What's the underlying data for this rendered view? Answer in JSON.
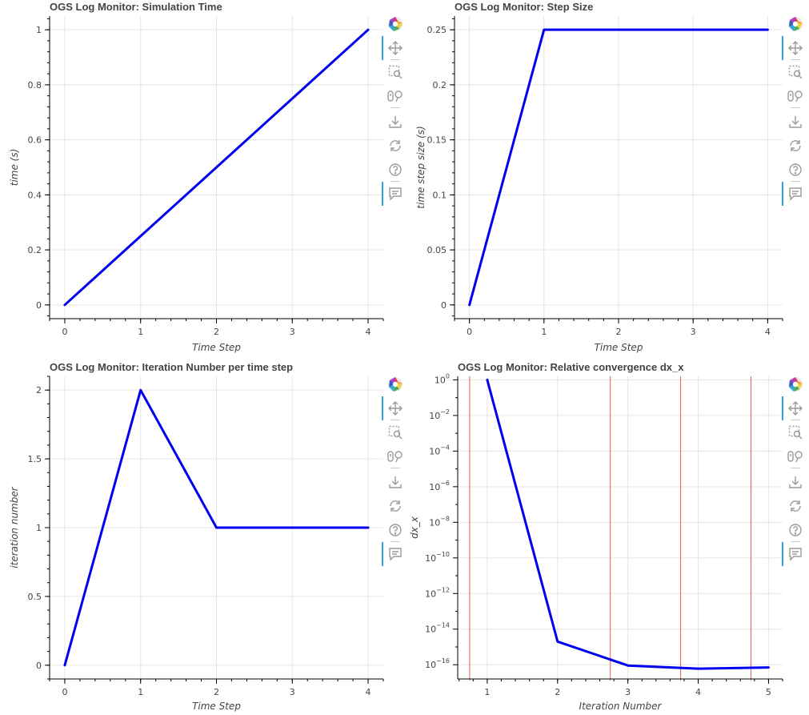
{
  "colors": {
    "series": "#0000ee",
    "vline": "#e06050",
    "grid": "#e5e5e5"
  },
  "charts": [
    {
      "title": "OGS Log Monitor: Simulation Time",
      "xlabel": "Time Step",
      "ylabel": "time (s)"
    },
    {
      "title": "OGS Log Monitor: Step Size",
      "xlabel": "Time Step",
      "ylabel": "time step size (s)"
    },
    {
      "title": "OGS Log Monitor: Iteration Number per time step",
      "xlabel": "Time Step",
      "ylabel": "iteration number"
    },
    {
      "title": "OGS Log Monitor: Relative convergence dx_x",
      "xlabel": "Iteration Number",
      "ylabel": "dx_x"
    }
  ],
  "toolbar_icons": [
    "bokeh-logo-icon",
    "pan-icon",
    "box-zoom-icon",
    "wheel-zoom-icon",
    "save-icon",
    "reset-icon",
    "help-icon",
    "hover-icon"
  ],
  "chart_data": [
    {
      "type": "line",
      "title": "OGS Log Monitor: Simulation Time",
      "xlabel": "Time Step",
      "ylabel": "time (s)",
      "x": [
        0,
        1,
        2,
        3,
        4
      ],
      "series": [
        {
          "values": [
            0,
            0.25,
            0.5,
            0.75,
            1.0
          ]
        }
      ],
      "xlim": [
        -0.2,
        4.2
      ],
      "ylim": [
        -0.05,
        1.05
      ],
      "xticks": [
        0,
        1,
        2,
        3,
        4
      ],
      "xtick_labels": [
        "0",
        "1",
        "2",
        "3",
        "4"
      ],
      "yticks": [
        0,
        0.2,
        0.4,
        0.6,
        0.8,
        1
      ],
      "ytick_labels": [
        "0",
        "0.2",
        "0.4",
        "0.6",
        "0.8",
        "1"
      ],
      "grid": true,
      "legend": "none"
    },
    {
      "type": "line",
      "title": "OGS Log Monitor: Step Size",
      "xlabel": "Time Step",
      "ylabel": "time step size (s)",
      "x": [
        0,
        1,
        2,
        3,
        4
      ],
      "series": [
        {
          "values": [
            0,
            0.25,
            0.25,
            0.25,
            0.25
          ]
        }
      ],
      "xlim": [
        -0.2,
        4.2
      ],
      "ylim": [
        -0.0125,
        0.2625
      ],
      "xticks": [
        0,
        1,
        2,
        3,
        4
      ],
      "xtick_labels": [
        "0",
        "1",
        "2",
        "3",
        "4"
      ],
      "yticks": [
        0,
        0.05,
        0.1,
        0.15,
        0.2,
        0.25
      ],
      "ytick_labels": [
        "0",
        "0.05",
        "0.1",
        "0.15",
        "0.2",
        "0.25"
      ],
      "grid": true,
      "legend": "none"
    },
    {
      "type": "line",
      "title": "OGS Log Monitor: Iteration Number per time step",
      "xlabel": "Time Step",
      "ylabel": "iteration number",
      "x": [
        0,
        1,
        2,
        3,
        4
      ],
      "series": [
        {
          "values": [
            0,
            2,
            1,
            1,
            1
          ]
        }
      ],
      "xlim": [
        -0.2,
        4.2
      ],
      "ylim": [
        -0.1,
        2.1
      ],
      "xticks": [
        0,
        1,
        2,
        3,
        4
      ],
      "xtick_labels": [
        "0",
        "1",
        "2",
        "3",
        "4"
      ],
      "yticks": [
        0,
        0.5,
        1,
        1.5,
        2
      ],
      "ytick_labels": [
        "0",
        "0.5",
        "1",
        "1.5",
        "2"
      ],
      "grid": true,
      "legend": "none"
    },
    {
      "type": "line",
      "title": "OGS Log Monitor: Relative convergence dx_x",
      "xlabel": "Iteration Number",
      "ylabel": "dx_x",
      "yscale": "log",
      "x": [
        1,
        2,
        3,
        4,
        5
      ],
      "series": [
        {
          "values": [
            1,
            2e-15,
            9e-17,
            6e-17,
            7e-17
          ]
        }
      ],
      "vlines": [
        0.75,
        2.75,
        3.75,
        4.75
      ],
      "xlim": [
        0.58,
        5.2
      ],
      "ylim_exp": [
        -16.8,
        0.2
      ],
      "xticks": [
        1,
        2,
        3,
        4,
        5
      ],
      "xtick_labels": [
        "1",
        "2",
        "3",
        "4",
        "5"
      ],
      "yticks_exp": [
        0,
        -2,
        -4,
        -6,
        -8,
        -10,
        -12,
        -14,
        -16
      ],
      "ytick_base": "10",
      "ytick_exponents": [
        "0",
        "−2",
        "−4",
        "−6",
        "−8",
        "−10",
        "−12",
        "−14",
        "−16"
      ],
      "grid": true,
      "legend": "none"
    }
  ]
}
